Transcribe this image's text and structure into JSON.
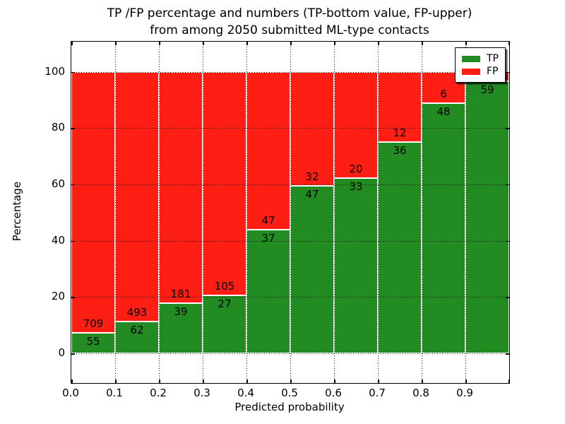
{
  "chart_data": {
    "type": "bar",
    "stacked": true,
    "title_line1": "TP /FP percentage and numbers (TP-bottom value, FP-upper)",
    "title_line2": "from among 2050 submitted ML-type contacts",
    "xlabel": "Predicted probability",
    "ylabel": "Percentage",
    "xlim": [
      0.0,
      1.0
    ],
    "ylim": [
      -10.5,
      110.5
    ],
    "xtick_labels": [
      "0.0",
      "0.1",
      "0.2",
      "0.3",
      "0.4",
      "0.5",
      "0.6",
      "0.7",
      "0.8",
      "0.9"
    ],
    "yticks": [
      0,
      20,
      40,
      60,
      80,
      100
    ],
    "grid_style": "dotted",
    "bar_edge_color": "#ffffff",
    "colors": {
      "tp": "#228b22",
      "fp": "#ff1e14"
    },
    "legend_position": "upper right",
    "legend": [
      {
        "label": "TP",
        "color": "#228b22"
      },
      {
        "label": "FP",
        "color": "#ff1e14"
      }
    ],
    "bars": [
      {
        "x0": 0.0,
        "x1": 0.1,
        "tp_pct": 7.2,
        "fp_pct": 92.8,
        "tp_count": "55",
        "fp_count": "709"
      },
      {
        "x0": 0.1,
        "x1": 0.2,
        "tp_pct": 11.2,
        "fp_pct": 88.8,
        "tp_count": "62",
        "fp_count": "493"
      },
      {
        "x0": 0.2,
        "x1": 0.3,
        "tp_pct": 17.7,
        "fp_pct": 82.3,
        "tp_count": "39",
        "fp_count": "181"
      },
      {
        "x0": 0.3,
        "x1": 0.4,
        "tp_pct": 20.5,
        "fp_pct": 79.5,
        "tp_count": "27",
        "fp_count": "105"
      },
      {
        "x0": 0.4,
        "x1": 0.5,
        "tp_pct": 44.0,
        "fp_pct": 56.0,
        "tp_count": "37",
        "fp_count": "47"
      },
      {
        "x0": 0.5,
        "x1": 0.6,
        "tp_pct": 59.5,
        "fp_pct": 40.5,
        "tp_count": "47",
        "fp_count": "32"
      },
      {
        "x0": 0.6,
        "x1": 0.7,
        "tp_pct": 62.3,
        "fp_pct": 37.7,
        "tp_count": "33",
        "fp_count": "20"
      },
      {
        "x0": 0.7,
        "x1": 0.8,
        "tp_pct": 75.0,
        "fp_pct": 25.0,
        "tp_count": "36",
        "fp_count": "12"
      },
      {
        "x0": 0.8,
        "x1": 0.9,
        "tp_pct": 88.9,
        "fp_pct": 11.1,
        "tp_count": "48",
        "fp_count": "6"
      },
      {
        "x0": 0.9,
        "x1": 1.0,
        "tp_pct": 96.7,
        "fp_pct": 3.3,
        "tp_count": "59",
        "fp_count": ""
      }
    ]
  }
}
